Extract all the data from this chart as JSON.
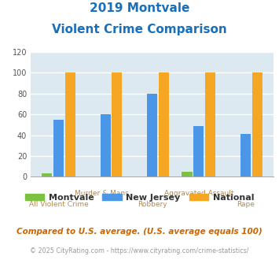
{
  "title_line1": "2019 Montvale",
  "title_line2": "Violent Crime Comparison",
  "categories": [
    "All Violent Crime",
    "Murder & Mans...",
    "Robbery",
    "Aggravated Assault",
    "Rape"
  ],
  "category_labels_top": [
    "",
    "Murder & Mans...",
    "",
    "Aggravated Assault",
    ""
  ],
  "category_labels_bot": [
    "All Violent Crime",
    "",
    "Robbery",
    "",
    "Rape"
  ],
  "montvale": [
    3,
    0,
    0,
    5,
    0
  ],
  "new_jersey": [
    55,
    60,
    80,
    49,
    41
  ],
  "national": [
    100,
    100,
    100,
    100,
    100
  ],
  "color_montvale": "#7dc142",
  "color_nj": "#4b96e6",
  "color_national": "#f5a623",
  "ylim": [
    0,
    120
  ],
  "yticks": [
    0,
    20,
    40,
    60,
    80,
    100,
    120
  ],
  "bg_color": "#dce9f0",
  "grid_color": "#ffffff",
  "title_color": "#1a6fba",
  "footnote1": "Compared to U.S. average. (U.S. average equals 100)",
  "footnote2": "© 2025 CityRating.com - https://www.cityrating.com/crime-statistics/",
  "footnote1_color": "#cc6600",
  "footnote2_color": "#999999",
  "legend_labels": [
    "Montvale",
    "New Jersey",
    "National"
  ],
  "xlabel_top_color": "#bb8844",
  "xlabel_bot_color": "#bb8844",
  "bar_width": 0.22,
  "bar_gap": 0.03
}
